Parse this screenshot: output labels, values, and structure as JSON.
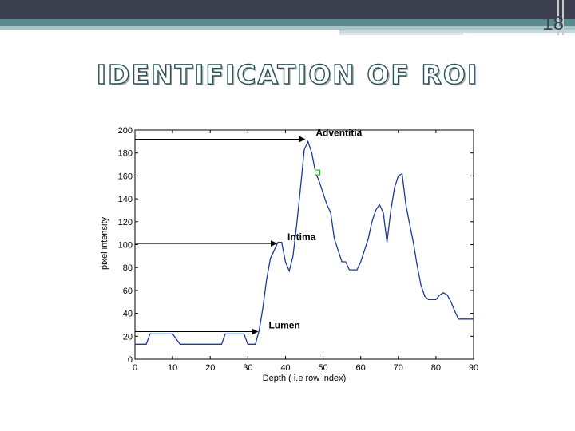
{
  "slide": {
    "number": "18",
    "title": "IDENTIFICATION OF ROI",
    "colors": {
      "topbar": "#3c3f4e",
      "accent": "#5b8a8f",
      "title_stroke": "#2b5257"
    }
  },
  "chart_data": {
    "type": "line",
    "xlabel": "Depth ( i.e row index)",
    "ylabel": "pixel intensity",
    "xlim": [
      0,
      90
    ],
    "ylim": [
      0,
      200
    ],
    "xticks": [
      0,
      10,
      20,
      30,
      40,
      50,
      60,
      70,
      80,
      90
    ],
    "yticks": [
      0,
      20,
      40,
      60,
      80,
      100,
      120,
      140,
      160,
      180,
      200
    ],
    "grid": false,
    "series": [
      {
        "color": "#1f3a93",
        "x": [
          0,
          3,
          4,
          10,
          12,
          13,
          18,
          20,
          21,
          22,
          23,
          24,
          26,
          27,
          28,
          29,
          30,
          31,
          32,
          33,
          34,
          35,
          36,
          37,
          38,
          39,
          40,
          41,
          42,
          43,
          44,
          45,
          46,
          47,
          48,
          49,
          50,
          51,
          52,
          53,
          54,
          55,
          56,
          57,
          58,
          59,
          60,
          61,
          62,
          63,
          64,
          65,
          66,
          67,
          68,
          69,
          70,
          71,
          72,
          73,
          74,
          75,
          76,
          77,
          78,
          79,
          80,
          81,
          82,
          83,
          84,
          85,
          86,
          87,
          88,
          89,
          90
        ],
        "y": [
          13,
          13,
          22,
          22,
          13,
          13,
          13,
          13,
          13,
          13,
          13,
          22,
          22,
          22,
          22,
          22,
          13,
          13,
          13,
          25,
          45,
          70,
          88,
          95,
          102,
          102,
          85,
          77,
          90,
          118,
          150,
          183,
          190,
          180,
          163,
          155,
          145,
          135,
          128,
          105,
          95,
          85,
          85,
          78,
          78,
          78,
          85,
          95,
          105,
          120,
          130,
          135,
          128,
          102,
          130,
          150,
          160,
          162,
          135,
          118,
          102,
          82,
          65,
          55,
          52,
          52,
          52,
          56,
          58,
          56,
          50,
          42,
          35,
          35,
          35,
          35,
          35
        ]
      }
    ],
    "annotations": [
      {
        "text": "Adventitia",
        "x": 45.5,
        "y": 192
      },
      {
        "text": "Intima",
        "x": 38,
        "y": 101
      },
      {
        "text": "Lumen",
        "x": 33,
        "y": 24
      }
    ],
    "marker": {
      "x": 48.5,
      "y": 163
    }
  }
}
